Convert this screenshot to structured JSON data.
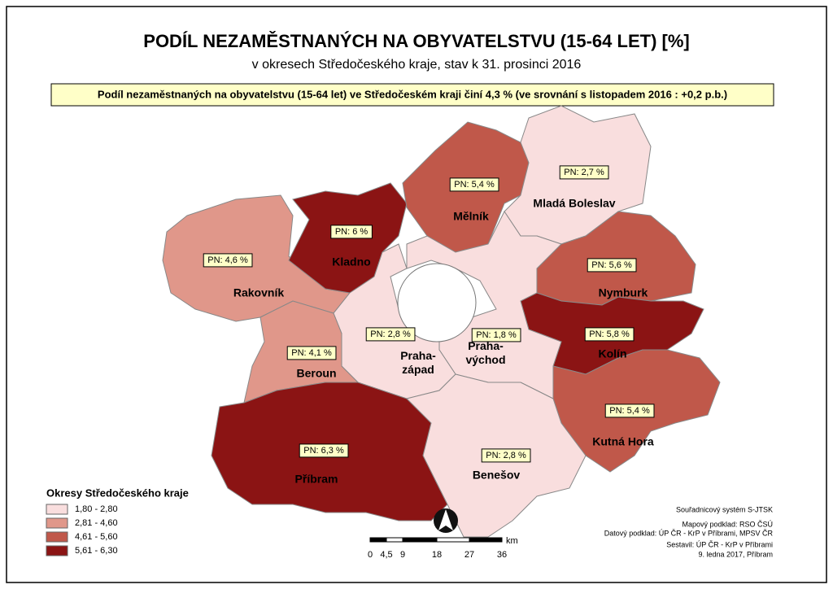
{
  "header": {
    "title": "PODÍL NEZAMĚSTNANÝCH NA OBYVATELSTVU (15-64 LET) [%]",
    "subtitle": "v okresech Středočeského kraje, stav k 31. prosinci 2016",
    "banner": "Podíl nezaměstnaných na obyvatelstvu (15-64 let) ve Středočeském kraji činí 4,3 % (ve srovnání s listopadem 2016 : +0,2 p.b.)"
  },
  "districts": [
    {
      "name": [
        "Rakovník"
      ],
      "pn_label": "PN: 4,6 %",
      "color": "#e0978a"
    },
    {
      "name": [
        "Kladno"
      ],
      "pn_label": "PN: 6 %",
      "color": "#8b1414"
    },
    {
      "name": [
        "Mělník"
      ],
      "pn_label": "PN: 5,4 %",
      "color": "#c0584a"
    },
    {
      "name": [
        "Mladá Boleslav"
      ],
      "pn_label": "PN: 2,7 %",
      "color": "#f9dede"
    },
    {
      "name": [
        "Nymburk"
      ],
      "pn_label": "PN: 5,6 %",
      "color": "#c0584a"
    },
    {
      "name": [
        "Kolín"
      ],
      "pn_label": "PN: 5,8 %",
      "color": "#8b1414"
    },
    {
      "name": [
        "Kutná Hora"
      ],
      "pn_label": "PN: 5,4 %",
      "color": "#c0584a"
    },
    {
      "name": [
        "Praha-",
        "východ"
      ],
      "pn_label": "PN: 1,8 %",
      "color": "#f9dede"
    },
    {
      "name": [
        "Praha-",
        "západ"
      ],
      "pn_label": "PN: 2,8 %",
      "color": "#f9dede"
    },
    {
      "name": [
        "Beroun"
      ],
      "pn_label": "PN: 4,1 %",
      "color": "#e0978a"
    },
    {
      "name": [
        "Příbram"
      ],
      "pn_label": "PN: 6,3 %",
      "color": "#8b1414"
    },
    {
      "name": [
        "Benešov"
      ],
      "pn_label": "PN: 2,8 %",
      "color": "#f9dede"
    }
  ],
  "legend": {
    "title": "Okresy Středočeského kraje",
    "classes": [
      {
        "label": "1,80 - 2,80",
        "color": "#f9dede"
      },
      {
        "label": "2,81 - 4,60",
        "color": "#e0978a"
      },
      {
        "label": "4,61 - 5,60",
        "color": "#c0584a"
      },
      {
        "label": "5,61 - 6,30",
        "color": "#8b1414"
      }
    ]
  },
  "scale": {
    "unit": "km",
    "ticks": [
      "0",
      "4,5",
      "9",
      "18",
      "27",
      "36"
    ]
  },
  "credits": [
    "Souřadnicový systém S-JTSK",
    "Mapový podklad: RSO ČSÚ",
    "Datový podklad: ÚP ČR - KrP v Příbrami, MPSV ČR",
    "Sestavil: ÚP ČR - KrP v Příbrami",
    "9. ledna 2017, Příbram"
  ]
}
